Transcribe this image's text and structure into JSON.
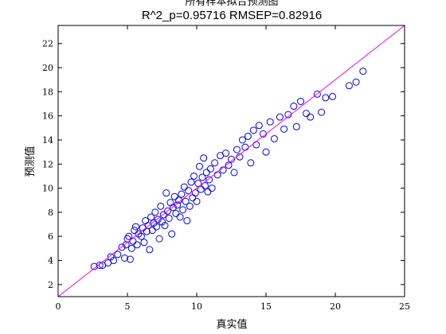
{
  "chart_data": {
    "type": "scatter",
    "title": "所有样本拟合预测图",
    "subtitle": "R^2_p=0.95716  RMSEP=0.82916",
    "xlabel": "真实值",
    "ylabel": "预测值",
    "xlim": [
      0,
      25
    ],
    "ylim": [
      1,
      23.5
    ],
    "xticks": [
      0,
      5,
      10,
      15,
      20,
      25
    ],
    "yticks": [
      2,
      4,
      6,
      8,
      10,
      12,
      14,
      16,
      18,
      20,
      22
    ],
    "grid": false,
    "marker": "open-circle",
    "colors": {
      "points": "#0000ff",
      "fit_line": "#ff00ff",
      "axes": "#000000"
    },
    "fit_line": {
      "x": [
        0,
        25
      ],
      "y": [
        1,
        23.5
      ]
    },
    "points": [
      [
        2.6,
        3.5
      ],
      [
        3.0,
        3.6
      ],
      [
        3.2,
        3.6
      ],
      [
        3.6,
        3.8
      ],
      [
        3.8,
        4.3
      ],
      [
        4.0,
        4.0
      ],
      [
        4.3,
        4.5
      ],
      [
        4.6,
        5.1
      ],
      [
        4.8,
        4.2
      ],
      [
        4.9,
        5.3
      ],
      [
        5.0,
        5.8
      ],
      [
        5.1,
        6.0
      ],
      [
        5.2,
        4.1
      ],
      [
        5.3,
        5.0
      ],
      [
        5.4,
        5.6
      ],
      [
        5.5,
        6.5
      ],
      [
        5.6,
        6.8
      ],
      [
        5.7,
        5.3
      ],
      [
        5.8,
        6.2
      ],
      [
        6.0,
        6.0
      ],
      [
        6.1,
        6.7
      ],
      [
        6.2,
        5.5
      ],
      [
        6.3,
        7.3
      ],
      [
        6.4,
        6.4
      ],
      [
        6.5,
        6.9
      ],
      [
        6.6,
        4.9
      ],
      [
        6.7,
        7.6
      ],
      [
        6.8,
        6.5
      ],
      [
        6.9,
        7.1
      ],
      [
        7.0,
        8.0
      ],
      [
        7.1,
        6.8
      ],
      [
        7.2,
        7.4
      ],
      [
        7.3,
        5.8
      ],
      [
        7.4,
        8.5
      ],
      [
        7.5,
        7.2
      ],
      [
        7.6,
        7.8
      ],
      [
        7.7,
        6.9
      ],
      [
        7.8,
        9.6
      ],
      [
        7.9,
        8.1
      ],
      [
        8.0,
        7.5
      ],
      [
        8.1,
        8.8
      ],
      [
        8.2,
        6.2
      ],
      [
        8.3,
        8.4
      ],
      [
        8.4,
        9.3
      ],
      [
        8.5,
        7.9
      ],
      [
        8.6,
        8.6
      ],
      [
        8.7,
        9.0
      ],
      [
        8.8,
        7.6
      ],
      [
        8.9,
        9.5
      ],
      [
        9.0,
        8.2
      ],
      [
        9.1,
        10.1
      ],
      [
        9.2,
        8.9
      ],
      [
        9.3,
        7.3
      ],
      [
        9.4,
        9.8
      ],
      [
        9.5,
        8.5
      ],
      [
        9.6,
        10.5
      ],
      [
        9.7,
        9.2
      ],
      [
        9.8,
        11.0
      ],
      [
        9.9,
        9.6
      ],
      [
        10.0,
        8.9
      ],
      [
        10.1,
        10.4
      ],
      [
        10.2,
        11.8
      ],
      [
        10.3,
        9.9
      ],
      [
        10.4,
        10.9
      ],
      [
        10.5,
        12.5
      ],
      [
        10.6,
        10.2
      ],
      [
        10.7,
        11.3
      ],
      [
        10.8,
        9.7
      ],
      [
        10.9,
        10.7
      ],
      [
        11.0,
        11.6
      ],
      [
        11.1,
        10.0
      ],
      [
        11.3,
        12.1
      ],
      [
        11.5,
        11.1
      ],
      [
        11.7,
        12.7
      ],
      [
        11.9,
        11.5
      ],
      [
        12.1,
        12.9
      ],
      [
        12.3,
        11.9
      ],
      [
        12.5,
        12.4
      ],
      [
        12.7,
        11.3
      ],
      [
        12.9,
        13.2
      ],
      [
        13.1,
        12.6
      ],
      [
        13.3,
        14.0
      ],
      [
        13.5,
        13.4
      ],
      [
        13.7,
        14.3
      ],
      [
        13.9,
        12.1
      ],
      [
        14.1,
        14.8
      ],
      [
        14.3,
        13.6
      ],
      [
        14.5,
        15.2
      ],
      [
        14.8,
        14.5
      ],
      [
        15.0,
        13.0
      ],
      [
        15.3,
        15.5
      ],
      [
        15.6,
        14.1
      ],
      [
        16.0,
        15.9
      ],
      [
        16.3,
        14.9
      ],
      [
        16.6,
        16.1
      ],
      [
        17.0,
        16.8
      ],
      [
        17.2,
        15.1
      ],
      [
        17.5,
        17.2
      ],
      [
        17.9,
        16.2
      ],
      [
        18.2,
        15.9
      ],
      [
        18.7,
        17.8
      ],
      [
        19.0,
        16.3
      ],
      [
        19.3,
        17.5
      ],
      [
        19.8,
        17.6
      ],
      [
        21.0,
        18.5
      ],
      [
        21.5,
        18.8
      ],
      [
        22.0,
        19.7
      ]
    ]
  }
}
